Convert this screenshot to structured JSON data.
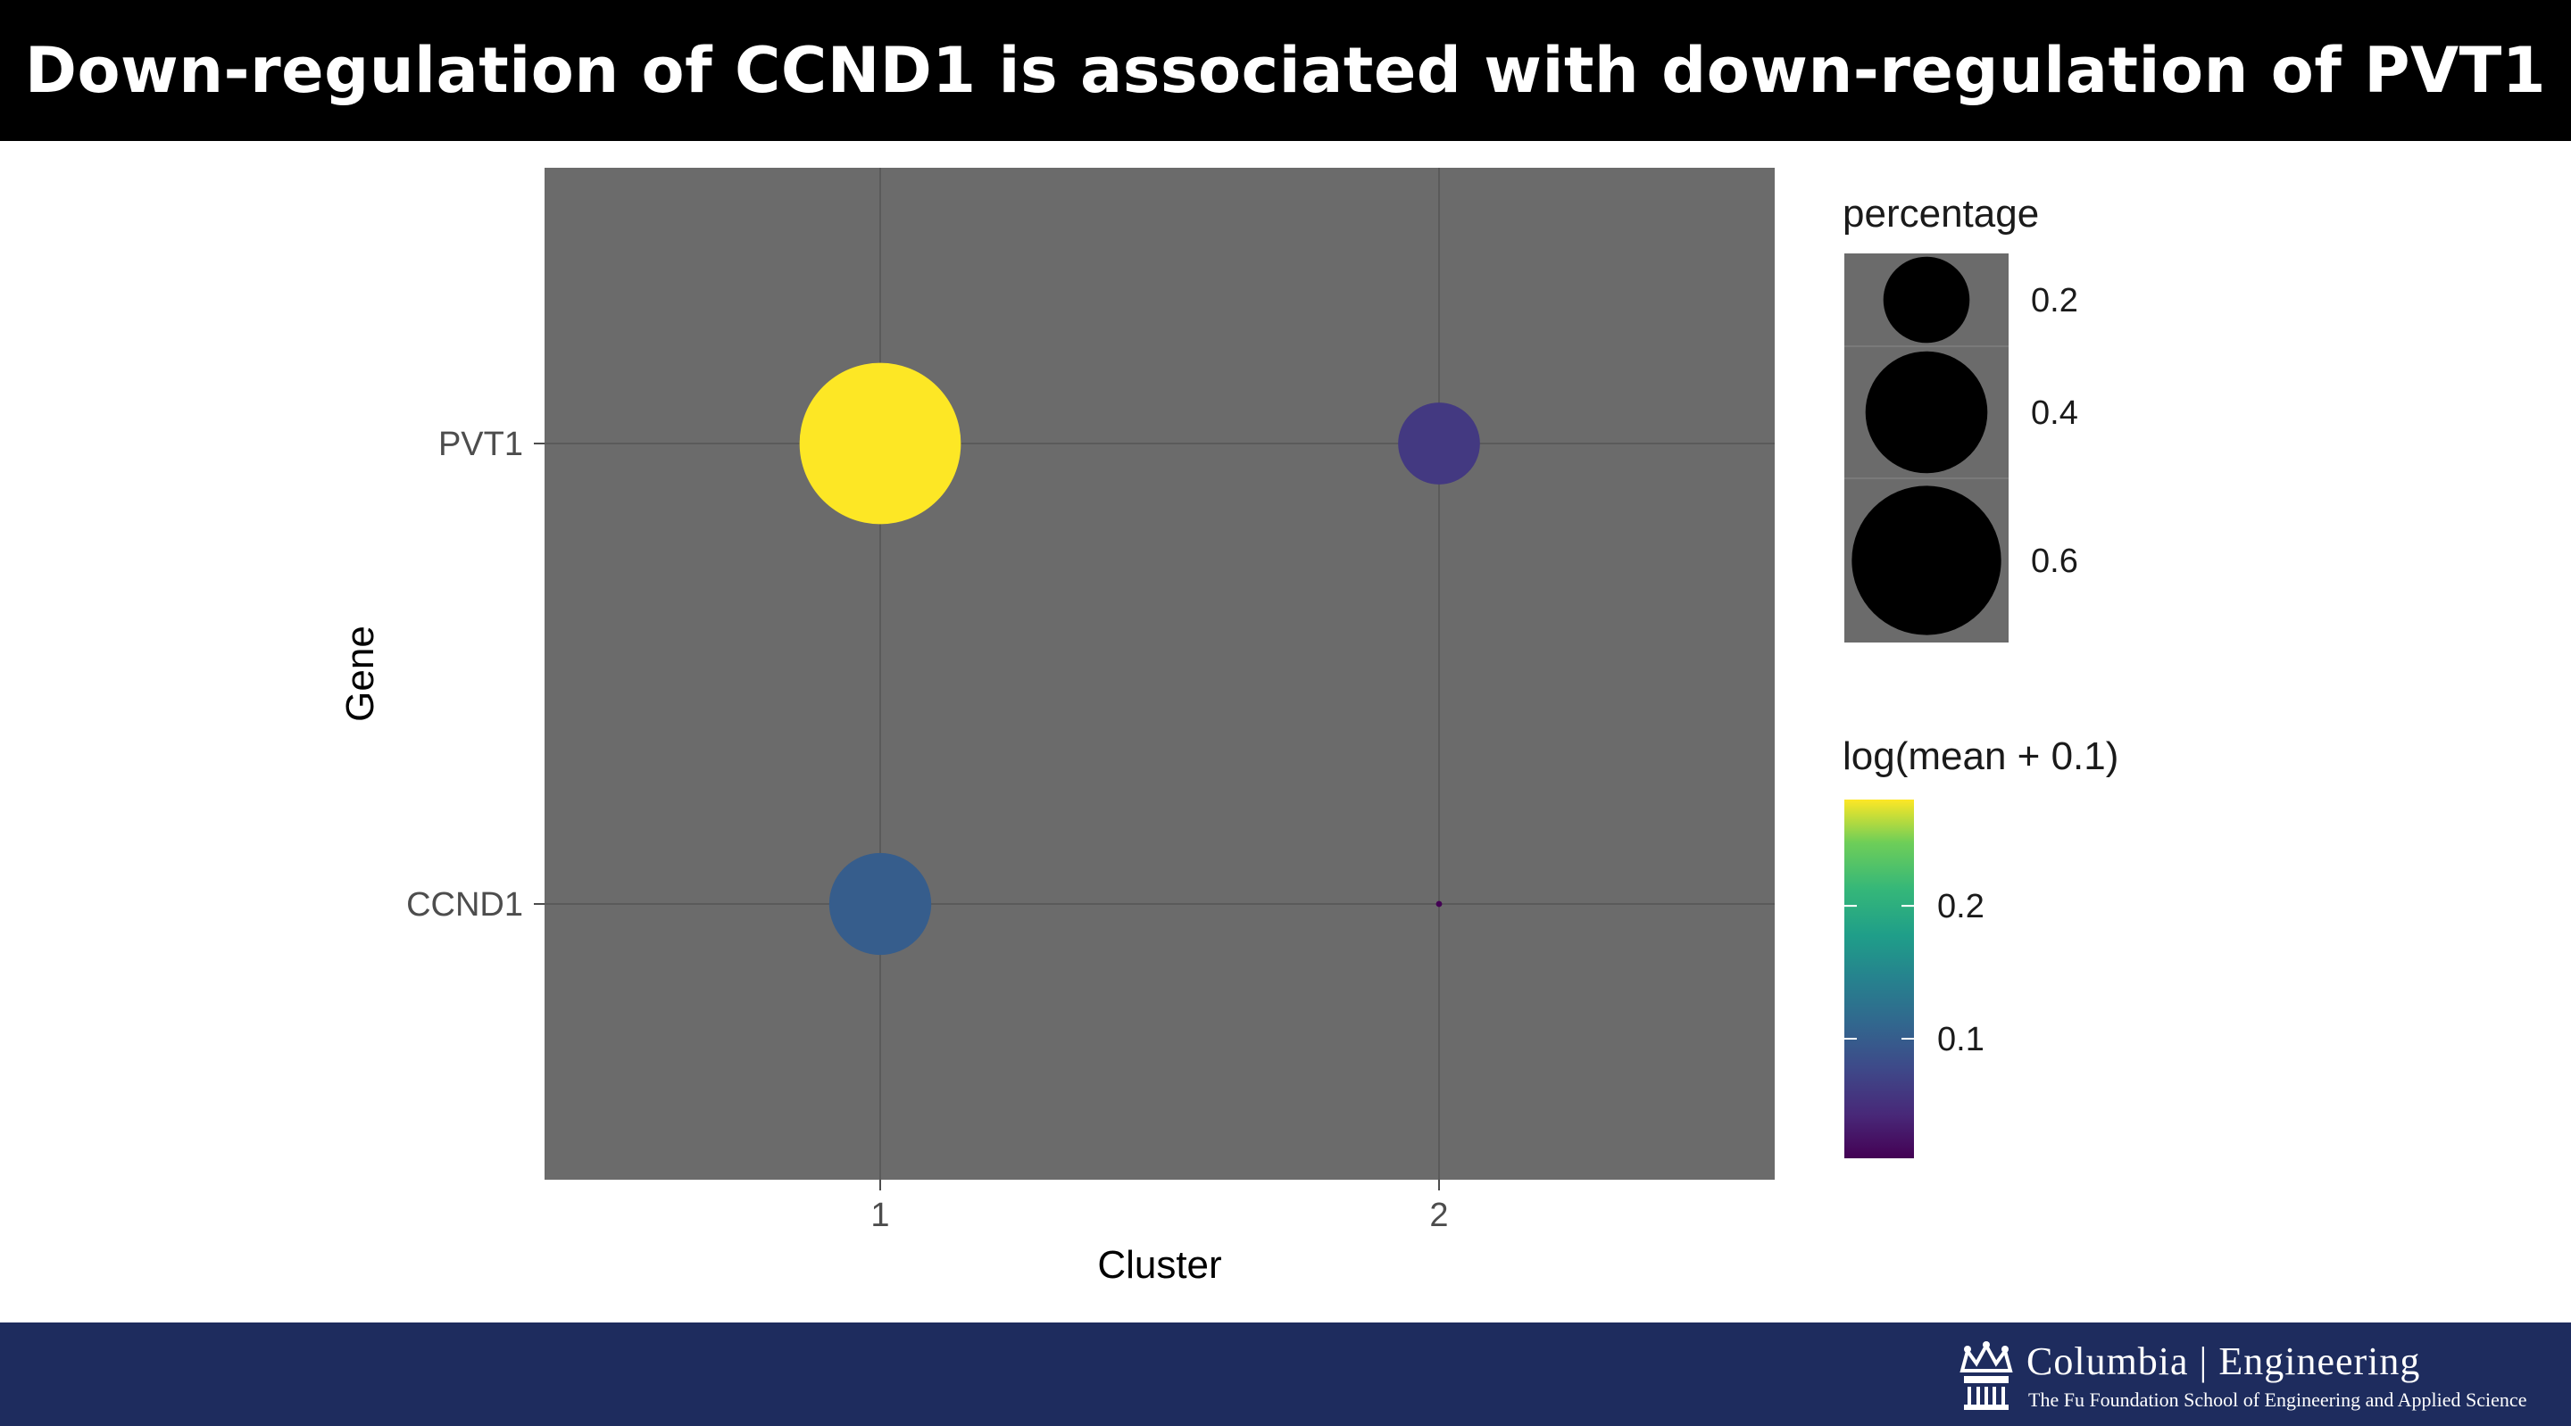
{
  "title": "Down-regulation of CCND1 is associated with down-regulation of PVT1",
  "chart_data": {
    "type": "scatter",
    "xlabel": "Cluster",
    "ylabel": "Gene",
    "x_categories": [
      "1",
      "2"
    ],
    "y_categories": [
      "CCND1",
      "PVT1"
    ],
    "points": [
      {
        "cluster": "1",
        "gene": "PVT1",
        "percentage": 0.7,
        "log_mean": 0.28
      },
      {
        "cluster": "2",
        "gene": "PVT1",
        "percentage": 0.18,
        "log_mean": 0.06
      },
      {
        "cluster": "1",
        "gene": "CCND1",
        "percentage": 0.28,
        "log_mean": 0.1
      },
      {
        "cluster": "2",
        "gene": "CCND1",
        "percentage": 0.001,
        "log_mean": 0.01
      }
    ],
    "size_legend": {
      "title": "percentage",
      "breaks": [
        0.2,
        0.4,
        0.6
      ],
      "labels": [
        "0.2",
        "0.4",
        "0.6"
      ]
    },
    "color_legend": {
      "title": "log(mean + 0.1)",
      "range": [
        0.01,
        0.28
      ],
      "breaks": [
        0.1,
        0.2
      ],
      "labels": [
        "0.1",
        "0.2"
      ]
    },
    "panel_background": "#6b6b6b",
    "grid": true,
    "legend_position": "right"
  },
  "footer": {
    "logo_name": "Columbia | Engineering",
    "logo_subtitle": "The Fu Foundation School of Engineering and Applied Science",
    "background": "#1e2c5e"
  }
}
